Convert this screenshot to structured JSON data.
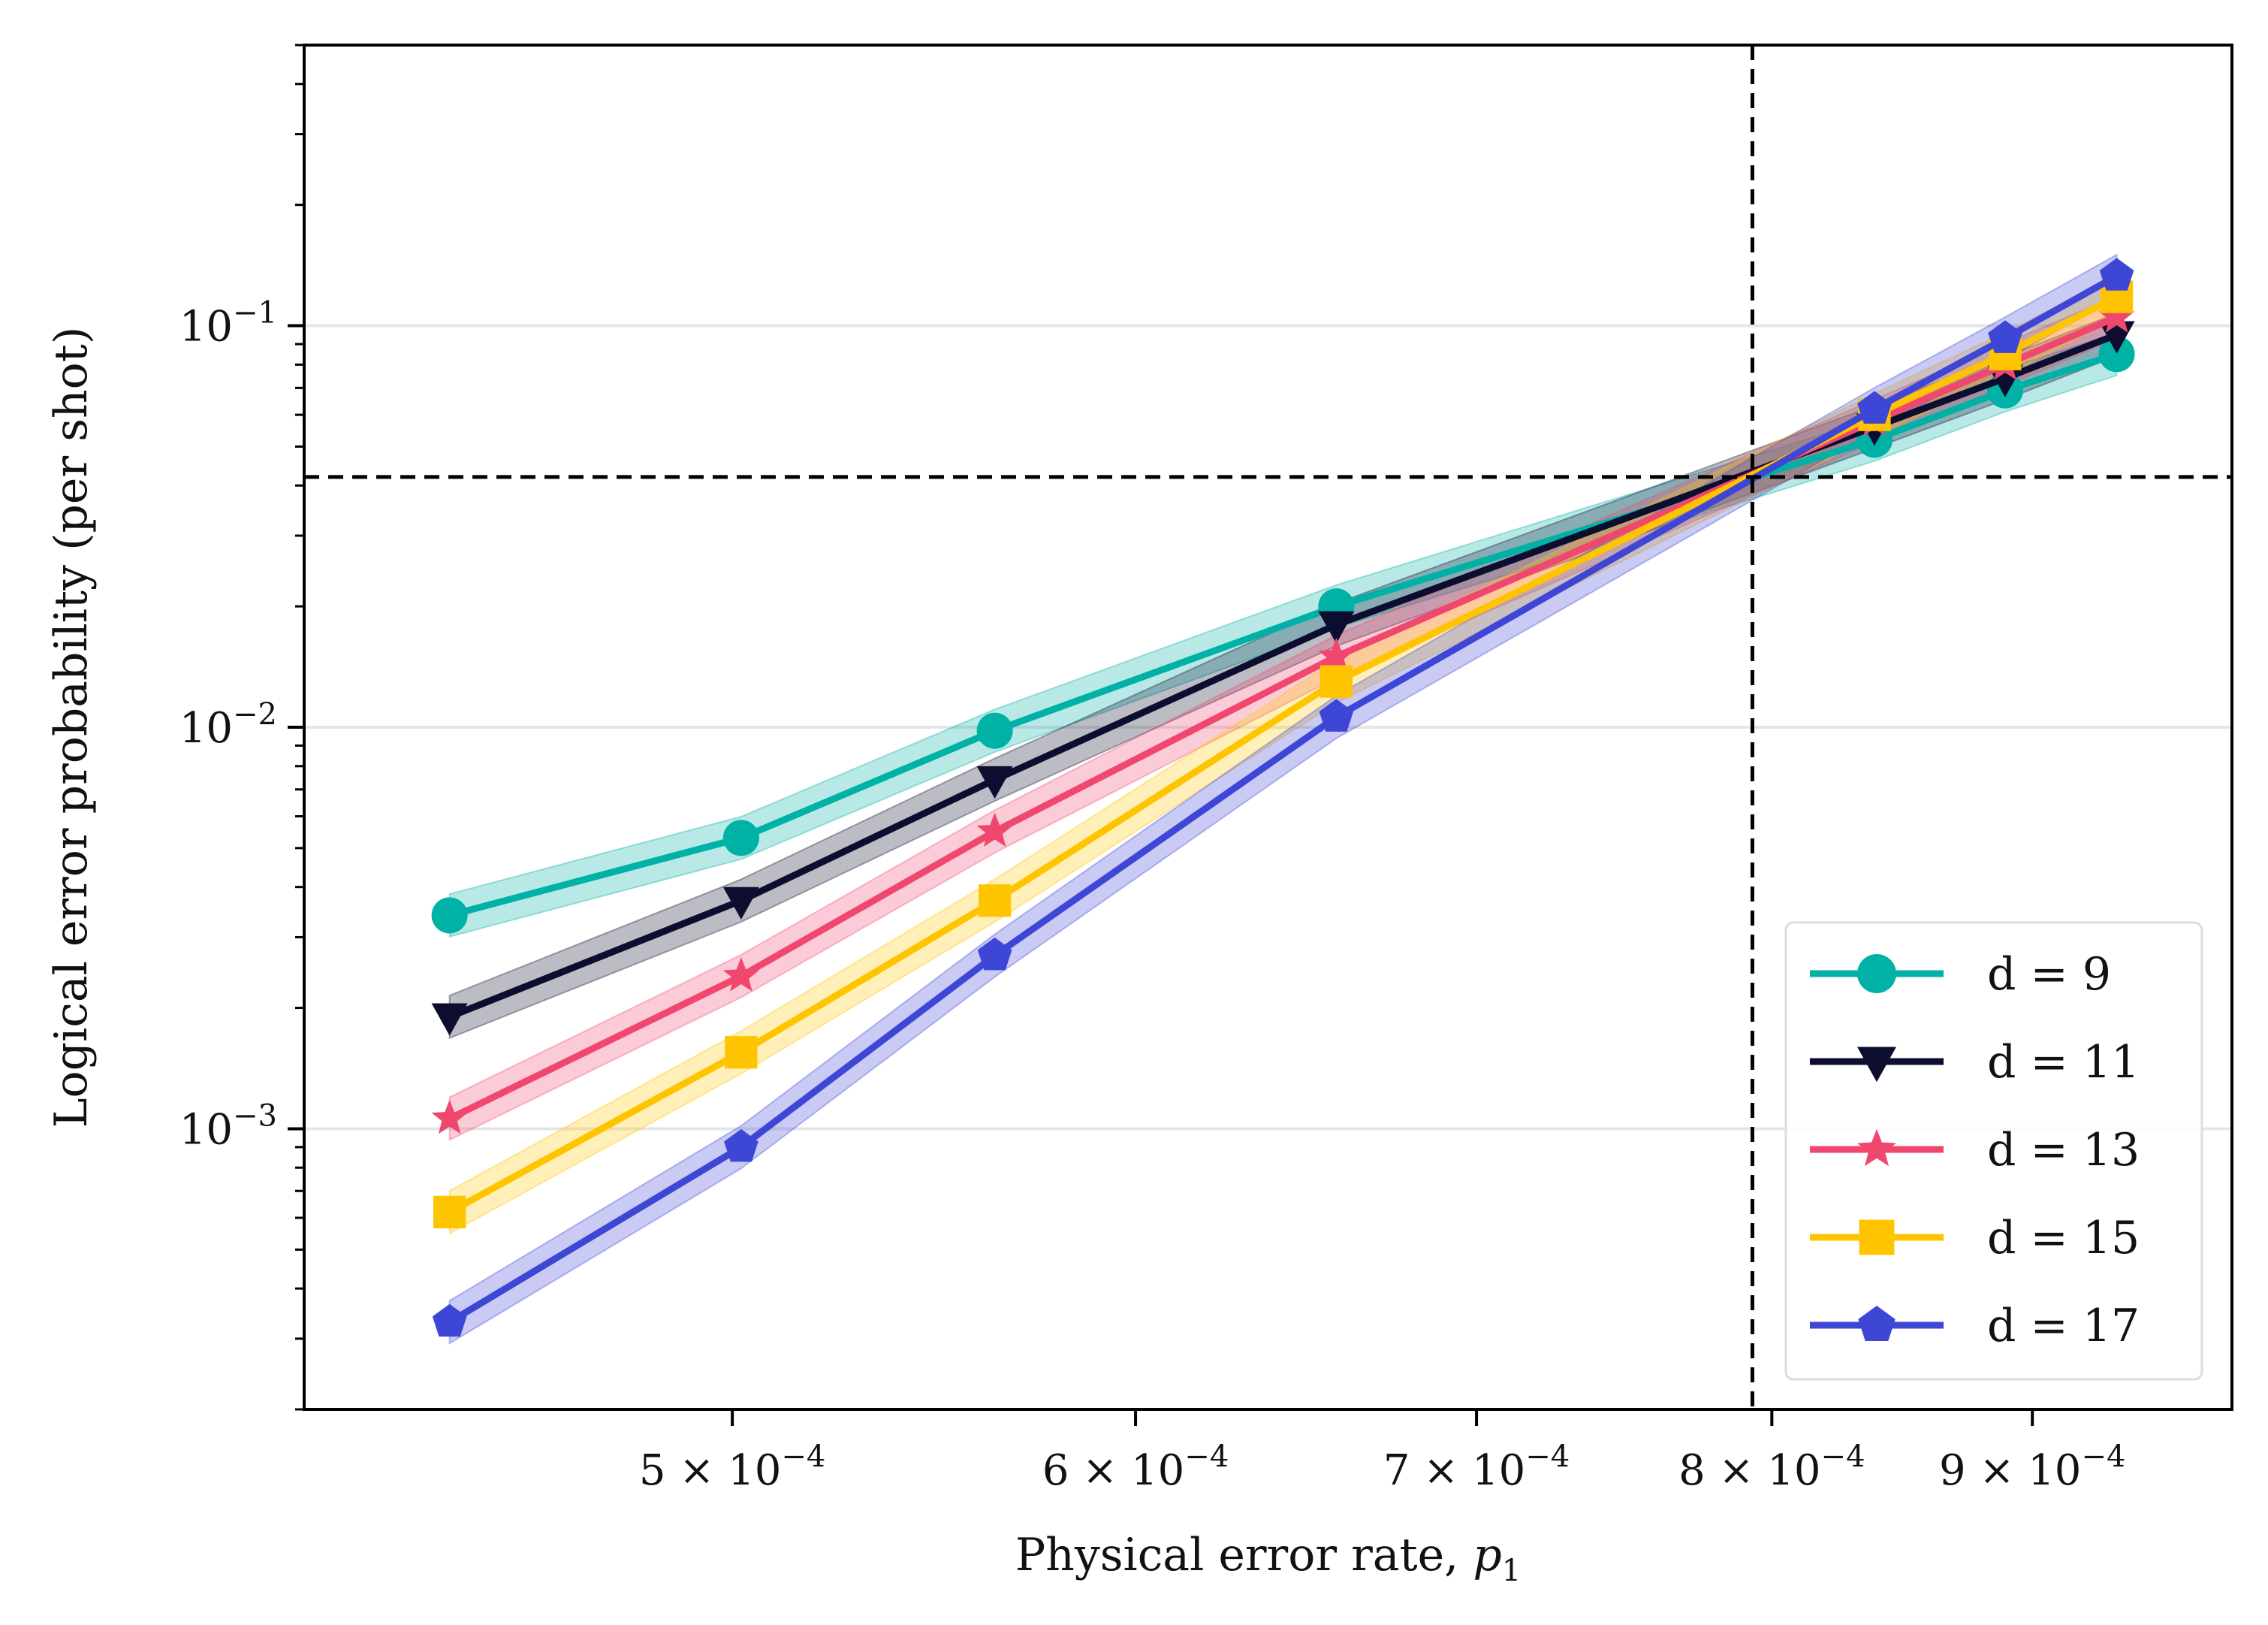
{
  "chart_data": {
    "type": "line",
    "xlabel": "Physical error rate,",
    "xlabel_symbol": "p",
    "xlabel_subscript": "1",
    "ylabel": "Logical error probability (per shot)",
    "x_scale": "log",
    "y_scale": "log",
    "xlim": [
      0.000412,
      0.000985
    ],
    "ylim": [
      0.0002,
      0.5
    ],
    "x_ticks": [
      {
        "value": 0.0005,
        "mantissa": "5",
        "sign": "×",
        "base": "10",
        "exp": "−4"
      },
      {
        "value": 0.0006,
        "mantissa": "6",
        "sign": "×",
        "base": "10",
        "exp": "−4"
      },
      {
        "value": 0.0007,
        "mantissa": "7",
        "sign": "×",
        "base": "10",
        "exp": "−4"
      },
      {
        "value": 0.0008,
        "mantissa": "8",
        "sign": "×",
        "base": "10",
        "exp": "−4"
      },
      {
        "value": 0.0009,
        "mantissa": "9",
        "sign": "×",
        "base": "10",
        "exp": "−4"
      }
    ],
    "y_ticks": [
      {
        "value": 0.001,
        "base": "10",
        "exp": "−3"
      },
      {
        "value": 0.01,
        "base": "10",
        "exp": "−2"
      },
      {
        "value": 0.1,
        "base": "10",
        "exp": "−1"
      }
    ],
    "grid": "horizontal major",
    "legend_position": "bottom-right",
    "threshold": {
      "x": 0.000793,
      "y": 0.042
    },
    "series": [
      {
        "name": "d = 9",
        "color": "#00b1a6",
        "marker": "circle",
        "x": [
          0.00044,
          0.000502,
          0.000563,
          0.000657,
          0.000838,
          0.000889,
          0.000935
        ],
        "y": [
          0.0034,
          0.0053,
          0.0098,
          0.02,
          0.052,
          0.069,
          0.085
        ]
      },
      {
        "name": "d = 11",
        "color": "#0d0d30",
        "marker": "triangle-down",
        "x": [
          0.00044,
          0.000502,
          0.000563,
          0.000657,
          0.000838,
          0.000889,
          0.000935
        ],
        "y": [
          0.0019,
          0.0037,
          0.0074,
          0.018,
          0.056,
          0.074,
          0.095
        ]
      },
      {
        "name": "d = 13",
        "color": "#f0476f",
        "marker": "star",
        "x": [
          0.00044,
          0.000502,
          0.000563,
          0.000657,
          0.000838,
          0.000889,
          0.000935
        ],
        "y": [
          0.00106,
          0.0024,
          0.0055,
          0.015,
          0.058,
          0.08,
          0.105
        ]
      },
      {
        "name": "d = 15",
        "color": "#ffc400",
        "marker": "square",
        "x": [
          0.00044,
          0.000502,
          0.000563,
          0.000657,
          0.000838,
          0.000889,
          0.000935
        ],
        "y": [
          0.00062,
          0.00155,
          0.0037,
          0.013,
          0.06,
          0.085,
          0.118
        ]
      },
      {
        "name": "d = 17",
        "color": "#3e46d6",
        "marker": "pentagon",
        "x": [
          0.00044,
          0.000502,
          0.000563,
          0.000657,
          0.000838,
          0.000889,
          0.000935
        ],
        "y": [
          0.00033,
          0.0009,
          0.0027,
          0.0106,
          0.062,
          0.093,
          0.133
        ]
      }
    ]
  }
}
